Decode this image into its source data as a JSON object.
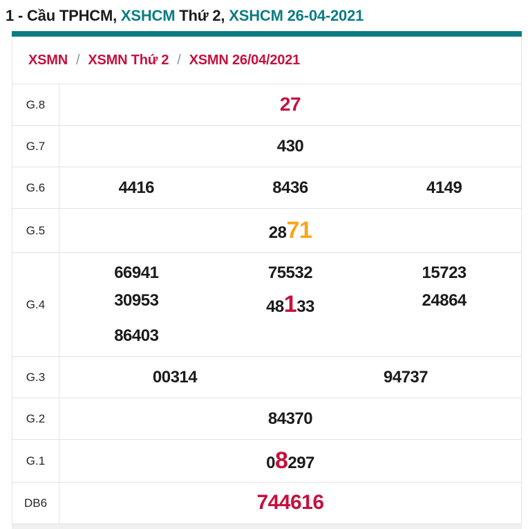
{
  "title": {
    "parts": [
      {
        "text": "1 - Cầu TPHCM, ",
        "style": "dark"
      },
      {
        "text": "XSHCM",
        "style": "teal"
      },
      {
        "text": " Thứ 2, ",
        "style": "dark"
      },
      {
        "text": "XSHCM 26-04-2021",
        "style": "teal"
      }
    ]
  },
  "breadcrumb": {
    "separator": "/",
    "items": [
      "XSMN",
      "XSMN Thứ 2",
      "XSMN 26/04/2021"
    ]
  },
  "results_table": {
    "rows": [
      {
        "label": "G.8",
        "columns": 1,
        "cells": [
          [
            {
              "text": "27",
              "style": "red-mid"
            }
          ]
        ]
      },
      {
        "label": "G.7",
        "columns": 1,
        "cells": [
          [
            {
              "text": "430",
              "style": "normal"
            }
          ]
        ]
      },
      {
        "label": "G.6",
        "columns": 3,
        "cells": [
          [
            {
              "text": "4416",
              "style": "normal"
            }
          ],
          [
            {
              "text": "8436",
              "style": "normal"
            }
          ],
          [
            {
              "text": "4149",
              "style": "normal"
            }
          ]
        ]
      },
      {
        "label": "G.5",
        "columns": 1,
        "cells": [
          [
            {
              "text": "28",
              "style": "normal"
            },
            {
              "text": "71",
              "style": "orange-big"
            }
          ]
        ]
      },
      {
        "label": "G.4",
        "columns": 3,
        "cells": [
          [
            {
              "text": "66941",
              "style": "normal"
            }
          ],
          [
            {
              "text": "75532",
              "style": "normal"
            }
          ],
          [
            {
              "text": "15723",
              "style": "normal"
            }
          ],
          [
            {
              "text": "30953",
              "style": "normal"
            }
          ],
          [
            {
              "text": "48",
              "style": "normal"
            },
            {
              "text": "1",
              "style": "red-big"
            },
            {
              "text": "33",
              "style": "normal"
            }
          ],
          [
            {
              "text": "24864",
              "style": "normal"
            }
          ],
          [
            {
              "text": "86403",
              "style": "normal"
            }
          ]
        ]
      },
      {
        "label": "G.3",
        "columns": 2,
        "cells": [
          [
            {
              "text": "00314",
              "style": "normal"
            }
          ],
          [
            {
              "text": "94737",
              "style": "normal"
            }
          ]
        ]
      },
      {
        "label": "G.2",
        "columns": 1,
        "cells": [
          [
            {
              "text": "84370",
              "style": "normal"
            }
          ]
        ]
      },
      {
        "label": "G.1",
        "columns": 1,
        "cells": [
          [
            {
              "text": "0",
              "style": "normal"
            },
            {
              "text": "8",
              "style": "red-big"
            },
            {
              "text": "297",
              "style": "normal"
            }
          ]
        ]
      },
      {
        "label": "DB6",
        "columns": 1,
        "cells": [
          [
            {
              "text": "744616",
              "style": "red-db"
            }
          ]
        ]
      }
    ]
  },
  "colors": {
    "teal": "#0b7c83",
    "crimson": "#c5113e",
    "orange": "#f9a51a",
    "dark": "#1b1b1d",
    "border": "#e3e3e3",
    "separator": "#7e96a6",
    "label": "#262626"
  }
}
